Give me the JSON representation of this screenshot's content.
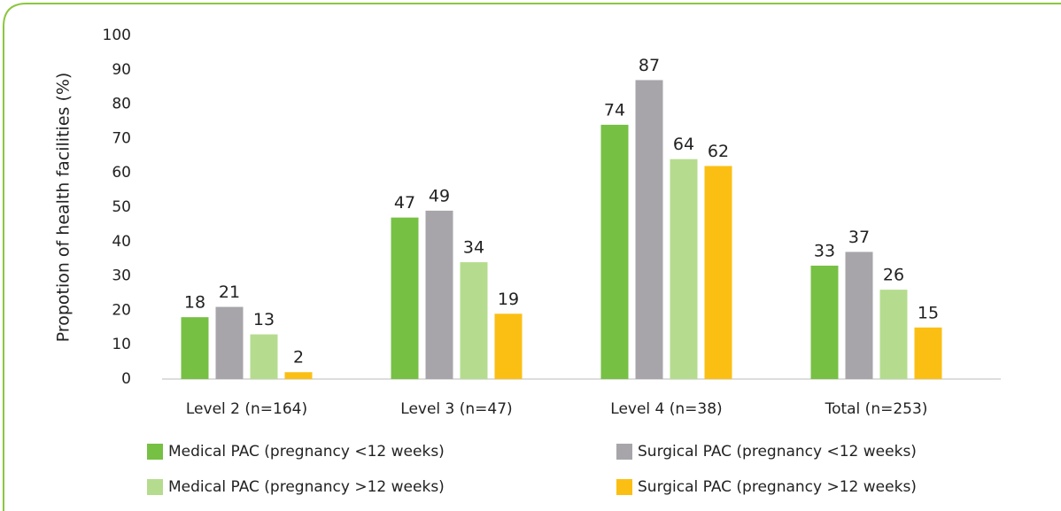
{
  "chart_data": {
    "type": "bar",
    "y_axis_label": "Propotion of health facilities (%)",
    "categories": [
      "Level 2 (n=164)",
      "Level 3 (n=47)",
      "Level 4 (n=38)",
      "Total (n=253)"
    ],
    "series": [
      {
        "name": "Medical PAC (pregnancy <12 weeks)",
        "color": "#76c043",
        "values": [
          18,
          47,
          74,
          33
        ]
      },
      {
        "name": "Surgical PAC (pregnancy <12 weeks)",
        "color": "#a7a5aa",
        "values": [
          21,
          49,
          87,
          37
        ]
      },
      {
        "name": "Medical PAC (pregnancy >12 weeks)",
        "color": "#b5dc8e",
        "values": [
          13,
          34,
          64,
          26
        ]
      },
      {
        "name": "Surgical PAC (pregnancy >12 weeks)",
        "color": "#fbbf14",
        "values": [
          2,
          19,
          62,
          15
        ]
      }
    ],
    "ylim": [
      0,
      100
    ],
    "yticks": [
      0,
      10,
      20,
      30,
      40,
      50,
      60,
      70,
      80,
      90,
      100
    ],
    "grid": false,
    "legend": "bottom"
  }
}
